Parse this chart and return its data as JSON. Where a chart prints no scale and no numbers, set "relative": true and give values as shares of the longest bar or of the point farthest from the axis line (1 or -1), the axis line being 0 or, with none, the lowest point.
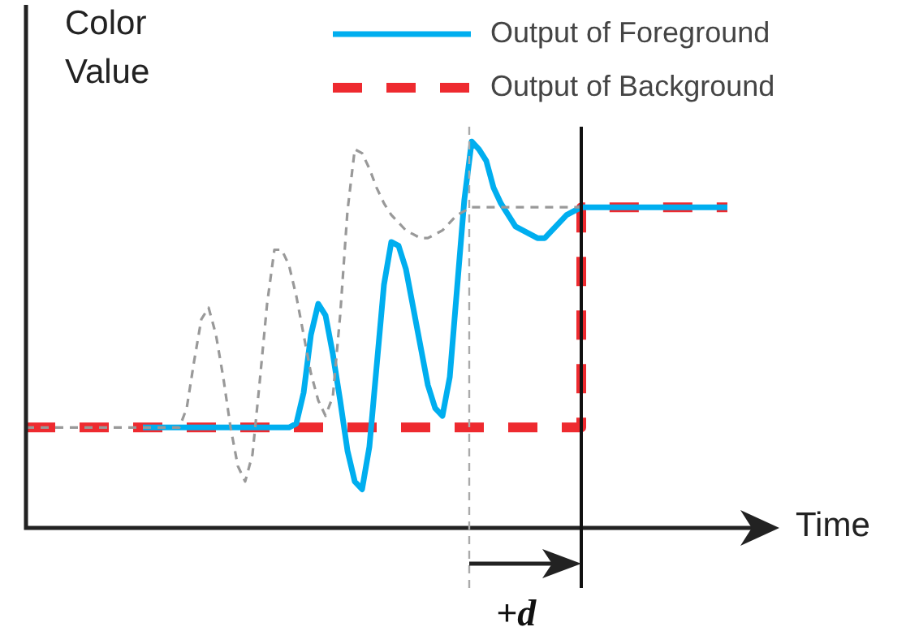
{
  "chart_data": {
    "type": "line",
    "relative": true,
    "xlabel": "Time",
    "ylabel": "Color Value",
    "tick_labels": false,
    "legend": "top right",
    "marker": "none",
    "annotations": [
      "+d"
    ],
    "categories": [
      null,
      null,
      null,
      null,
      null,
      null,
      null,
      null,
      null,
      null,
      null,
      null,
      null,
      null,
      null,
      null,
      null,
      null,
      null,
      null,
      null,
      null,
      null,
      null,
      null,
      null,
      null,
      null,
      null,
      null,
      null,
      null,
      null,
      null,
      null,
      null,
      null,
      null,
      null,
      null,
      null,
      null,
      null,
      null,
      null,
      null,
      null,
      null,
      null,
      null,
      null,
      null,
      null,
      null,
      null,
      null,
      null,
      null,
      null,
      null,
      null,
      null,
      null,
      null,
      null,
      null,
      null,
      null,
      null,
      null,
      null,
      null,
      null,
      null,
      null,
      null,
      null,
      null,
      null,
      null,
      null,
      null,
      null,
      null,
      null,
      null,
      null,
      null,
      null,
      null,
      null,
      null,
      null,
      null,
      null,
      null,
      null
    ],
    "series": [
      {
        "color": "#999999",
        "line_style": "dashed",
        "values": [
          0.26,
          0.26,
          0.26,
          0.26,
          0.26,
          0.26,
          0.26,
          0.26,
          0.26,
          0.26,
          0.26,
          0.26,
          0.26,
          0.26,
          0.26,
          0.26,
          0.26,
          0.26,
          0.26,
          0.26,
          0.26,
          0.26,
          0.31,
          0.43,
          0.54,
          0.57,
          0.5,
          0.39,
          0.26,
          0.16,
          0.12,
          0.19,
          0.38,
          0.58,
          0.72,
          0.72,
          0.68,
          0.6,
          0.5,
          0.4,
          0.33,
          0.29,
          0.34,
          0.55,
          0.82,
          0.98,
          0.97,
          0.93,
          0.88,
          0.84,
          0.81,
          0.79,
          0.77,
          0.76,
          0.75,
          0.75,
          0.76,
          0.77,
          0.79,
          0.81,
          0.82,
          0.83,
          0.83,
          0.83,
          0.83,
          0.83,
          0.83,
          0.83,
          0.83,
          0.83,
          0.83,
          0.83,
          0.83,
          0.83,
          0.83,
          0.83,
          0.83,
          null,
          null,
          null,
          null,
          null,
          null,
          null,
          null,
          null,
          null,
          null,
          null,
          null,
          null,
          null,
          null,
          null,
          null,
          null,
          null
        ]
      },
      {
        "name": "Output of Foreground",
        "color": "#00aeef",
        "line_style": "solid",
        "values": [
          null,
          null,
          null,
          null,
          null,
          null,
          null,
          null,
          null,
          null,
          null,
          null,
          null,
          null,
          null,
          null,
          0.26,
          0.26,
          0.26,
          0.26,
          0.26,
          0.26,
          0.26,
          0.26,
          0.26,
          0.26,
          0.26,
          0.26,
          0.26,
          0.26,
          0.26,
          0.26,
          0.26,
          0.26,
          0.26,
          0.26,
          0.26,
          0.27,
          0.35,
          0.5,
          0.58,
          0.55,
          0.45,
          0.33,
          0.2,
          0.12,
          0.1,
          0.21,
          0.42,
          0.63,
          0.74,
          0.73,
          0.67,
          0.57,
          0.47,
          0.37,
          0.31,
          0.29,
          0.39,
          0.62,
          0.85,
          1,
          0.98,
          0.95,
          0.88,
          0.84,
          0.81,
          0.78,
          0.77,
          0.76,
          0.75,
          0.75,
          0.77,
          0.79,
          0.81,
          0.82,
          0.83,
          0.83,
          0.83,
          0.83,
          0.83,
          0.83,
          0.83,
          0.83,
          0.83,
          0.83,
          0.83,
          0.83,
          0.83,
          0.83,
          0.83,
          0.83,
          0.83,
          0.83,
          0.83,
          0.83,
          0.83
        ]
      },
      {
        "name": "Output of Background",
        "type": "step",
        "color": "#ee2a2f",
        "line_style": "dashed",
        "values": [
          0.26,
          0.26,
          0.26,
          0.26,
          0.26,
          0.26,
          0.26,
          0.26,
          0.26,
          0.26,
          0.26,
          0.26,
          0.26,
          0.26,
          0.26,
          0.26,
          0.26,
          0.26,
          0.26,
          0.26,
          0.26,
          0.26,
          0.26,
          0.26,
          0.26,
          0.26,
          0.26,
          0.26,
          0.26,
          0.26,
          0.26,
          0.26,
          0.26,
          0.26,
          0.26,
          0.26,
          0.26,
          0.26,
          0.26,
          0.26,
          0.26,
          0.26,
          0.26,
          0.26,
          0.26,
          0.26,
          0.26,
          0.26,
          0.26,
          0.26,
          0.26,
          0.26,
          0.26,
          0.26,
          0.26,
          0.26,
          0.26,
          0.26,
          0.26,
          0.26,
          0.26,
          0.26,
          0.26,
          0.26,
          0.26,
          0.26,
          0.26,
          0.26,
          0.26,
          0.26,
          0.26,
          0.26,
          0.26,
          0.26,
          0.26,
          0.26,
          0.83,
          0.83,
          0.83,
          0.83,
          0.83,
          0.83,
          0.83,
          0.83,
          0.83,
          0.83,
          0.83,
          0.83,
          0.83,
          0.83,
          0.83,
          0.83,
          0.83,
          0.83,
          0.83,
          0.83,
          0.83
        ]
      }
    ]
  }
}
